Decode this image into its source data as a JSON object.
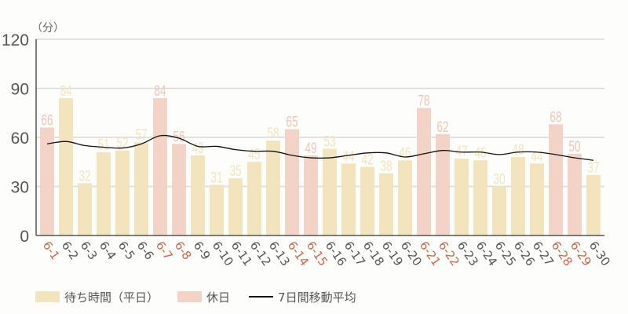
{
  "chart_data": {
    "type": "bar",
    "unit_label": "（分）",
    "title": "",
    "xlabel": "",
    "ylabel": "（分）",
    "ylim": [
      0,
      120
    ],
    "yticks": [
      0,
      30,
      60,
      90,
      120
    ],
    "grid": true,
    "legend_position": "bottom-left",
    "categories": [
      "6-1",
      "6-2",
      "6-3",
      "6-4",
      "6-5",
      "6-6",
      "6-7",
      "6-8",
      "6-9",
      "6-10",
      "6-11",
      "6-12",
      "6-13",
      "6-14",
      "6-15",
      "6-16",
      "6-17",
      "6-18",
      "6-19",
      "6-20",
      "6-21",
      "6-22",
      "6-23",
      "6-24",
      "6-25",
      "6-26",
      "6-27",
      "6-28",
      "6-29",
      "6-30"
    ],
    "values": [
      66,
      84,
      32,
      51,
      52,
      57,
      84,
      56,
      49,
      31,
      35,
      45,
      58,
      65,
      49,
      53,
      44,
      42,
      38,
      46,
      78,
      62,
      47,
      46,
      30,
      48,
      44,
      68,
      50,
      37
    ],
    "holiday": [
      true,
      false,
      false,
      false,
      false,
      false,
      true,
      true,
      false,
      false,
      false,
      false,
      false,
      true,
      true,
      false,
      false,
      false,
      false,
      false,
      true,
      true,
      false,
      false,
      false,
      false,
      false,
      true,
      true,
      false
    ],
    "series": [
      {
        "name": "待ち時間（平日）",
        "type": "bar",
        "color": "#f2e4bd"
      },
      {
        "name": "休日",
        "type": "bar",
        "color": "#f2d3c5"
      },
      {
        "name": "7日間移動平均",
        "type": "line",
        "color": "#111111",
        "values": [
          56,
          57.5,
          55,
          54,
          53.5,
          56,
          61,
          59.5,
          54.5,
          54.5,
          52.5,
          51.5,
          51.5,
          49,
          47.5,
          47.5,
          49,
          50.5,
          50.5,
          48,
          50,
          52,
          51,
          51,
          49.5,
          51,
          51,
          49.5,
          47.5,
          46
        ]
      }
    ]
  },
  "colors": {
    "weekday_bar": "#f2e4bd",
    "holiday_bar": "#f2d3c5",
    "weekday_label": "#f2e4bd",
    "holiday_label": "#efc5b5",
    "holiday_tick": "#c8664a",
    "weekday_tick": "#555555",
    "grid": "#d9d9d9",
    "axis": "#555555"
  },
  "legend": {
    "weekday": "待ち時間（平日）",
    "holiday": "休日",
    "average": "7日間移動平均"
  }
}
